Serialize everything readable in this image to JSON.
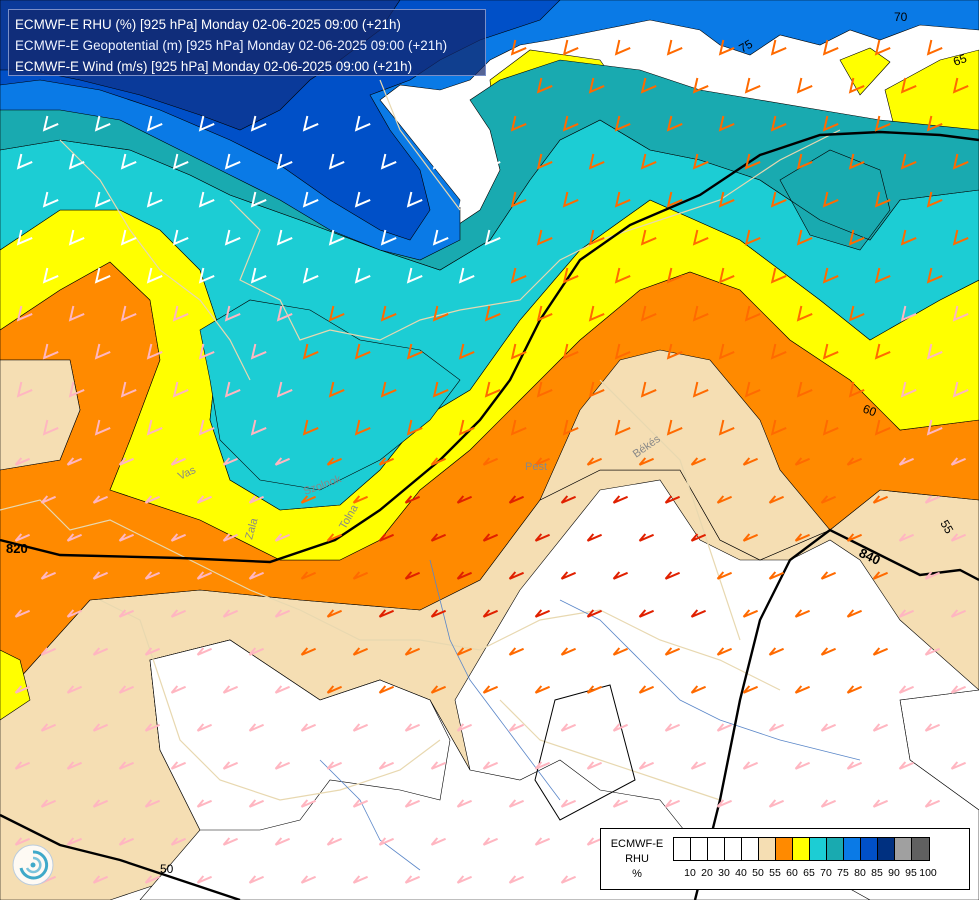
{
  "title": {
    "line1": "ECMWF-E RHU (%) [925 hPa] Monday 02-06-2025 09:00 (+21h)",
    "line2": "ECMWF-E Geopotential (m) [925 hPa] Monday 02-06-2025 09:00 (+21h)",
    "line3": "ECMWF-E Wind (m/s) [925 hPa] Monday 02-06-2025 09:00 (+21h)"
  },
  "map_labels": {
    "contour_70": "70",
    "contour_75": "75",
    "contour_65": "65",
    "contour_60": "60",
    "contour_55": "55",
    "contour_50": "50",
    "geo_820": "820",
    "geo_840": "840",
    "place_vas": "Vas",
    "place_zala": "Zala",
    "place_tolna": "Tolna",
    "place_pest": "Pest",
    "place_bekes": "Békés",
    "place_szolnok": "Szolnok",
    "place_lake": "Szigetköz"
  },
  "legend": {
    "line1": "ECMWF-E",
    "line2": "RHU",
    "line3": "%",
    "ticks": [
      "10",
      "20",
      "30",
      "40",
      "50",
      "55",
      "60",
      "65",
      "70",
      "75",
      "80",
      "85",
      "90",
      "95",
      "100"
    ],
    "colors": [
      "#ffffff",
      "#ffffff",
      "#ffffff",
      "#ffffff",
      "#ffffff",
      "#f5deb3",
      "#ff8a00",
      "#ffff00",
      "#1ccdd4",
      "#19aab0",
      "#0a7ae6",
      "#0050c8",
      "#003080",
      "#a0a0a0",
      "#606060"
    ]
  },
  "colors": {
    "rhu_50_55": "#f5deb3",
    "rhu_55_60": "#ff8a00",
    "rhu_60_65": "#ffff00",
    "rhu_65_70": "#1ccdd4",
    "rhu_70_75": "#19aab0",
    "rhu_75_80": "#0a7ae6",
    "rhu_80_85": "#0050c8",
    "rhu_85_90": "#003080",
    "wind_barb_light": "#ffb6c1",
    "wind_barb_medium": "#ff6a00",
    "wind_barb_strong": "#e02000"
  }
}
